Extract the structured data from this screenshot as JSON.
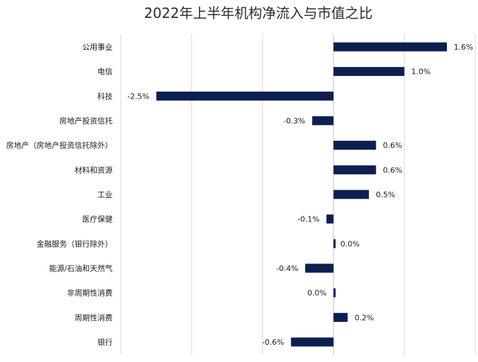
{
  "chart_data": {
    "type": "bar",
    "orientation": "horizontal",
    "title": "2022年上半年机构净流入与市值之比",
    "xlabel": "",
    "ylabel": "",
    "grid": true,
    "legend": "none",
    "xlim": [
      -3.0,
      2.0
    ],
    "bar_color": "#0d1f4f",
    "categories": [
      "公用事业",
      "电信",
      "科技",
      "房地产投资信托",
      "房地产（房地产投资信托除外）",
      "材料和资源",
      "工业",
      "医疗保健",
      "金融服务（银行除外）",
      "能源/石油和天然气",
      "非周期性消费",
      "周期性消费",
      "银行"
    ],
    "values": [
      1.6,
      1.0,
      -2.5,
      -0.3,
      0.6,
      0.6,
      0.5,
      -0.1,
      0.0,
      -0.4,
      0.0,
      0.2,
      -0.6
    ],
    "value_labels": [
      "1.6%",
      "1.0%",
      "-2.5%",
      "-0.3%",
      "0.6%",
      "0.6%",
      "0.5%",
      "-0.1%",
      "0.0%",
      "-0.4%",
      "0.0%",
      "0.2%",
      "-0.6%"
    ]
  }
}
